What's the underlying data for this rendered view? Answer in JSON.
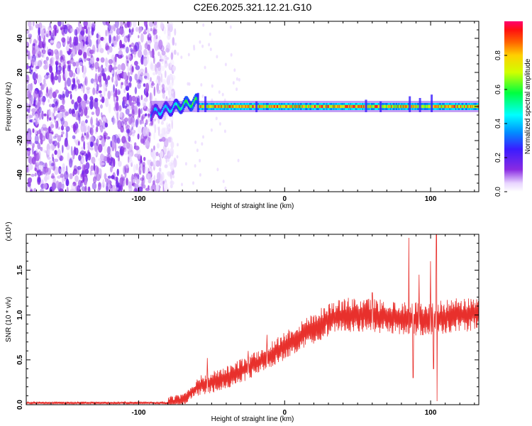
{
  "title": "C2E6.2025.321.12.21.G10",
  "chart_data": [
    {
      "type": "heatmap",
      "name": "spectrogram",
      "xlabel": "Height of straight line (km)",
      "ylabel": "Frequency (Hz)",
      "xlim": [
        -177,
        133
      ],
      "ylim": [
        -50,
        50
      ],
      "xticks": [
        -100,
        0,
        100
      ],
      "yticks": [
        -40,
        -20,
        0,
        20,
        40
      ],
      "colorbar": {
        "label": "Normalized spectral amplitude",
        "range": [
          0.0,
          1.0
        ],
        "ticks": [
          "0.0",
          "0.2",
          "0.4",
          "0.6",
          "0.8"
        ]
      },
      "features": {
        "noise_region_x_max": -80,
        "signal_start_x": -92,
        "signal_frequency_hz": 0,
        "signal_amplitude_plateau": 0.75,
        "wobble_region": [
          -92,
          -60
        ]
      }
    },
    {
      "type": "line",
      "name": "snr",
      "xlabel": "Height of straight line (km)",
      "ylabel": "SNR (10 * v/v)",
      "scale_label": "(x10⁴)",
      "xlim": [
        -177,
        133
      ],
      "ylim": [
        0.0,
        1.9
      ],
      "xticks": [
        -100,
        0,
        100
      ],
      "yticks": [
        "0.0",
        "0.5",
        "1.0",
        "1.5"
      ],
      "color": "#e8302c",
      "envelope": {
        "x": [
          -177,
          -80,
          -70,
          -60,
          -50,
          -40,
          -30,
          -20,
          -10,
          0,
          10,
          20,
          30,
          40,
          50,
          60,
          70,
          80,
          90,
          100,
          110,
          120,
          133
        ],
        "y": [
          0.02,
          0.02,
          0.05,
          0.2,
          0.25,
          0.3,
          0.38,
          0.45,
          0.55,
          0.66,
          0.76,
          0.86,
          0.95,
          1.0,
          1.0,
          1.0,
          0.98,
          0.97,
          0.96,
          0.95,
          0.98,
          1.0,
          1.02
        ]
      },
      "peaks": [
        {
          "x": -53,
          "y": 0.52
        },
        {
          "x": -25,
          "y": 0.6
        },
        {
          "x": -12,
          "y": 0.78
        },
        {
          "x": 60,
          "y": 1.25
        },
        {
          "x": 85,
          "y": 1.86
        },
        {
          "x": 88,
          "y": 1.5
        },
        {
          "x": 92,
          "y": 1.45
        },
        {
          "x": 100,
          "y": 1.6
        },
        {
          "x": 104,
          "y": 1.96
        },
        {
          "x": 104.5,
          "y": 0.04
        },
        {
          "x": 102,
          "y": 0.4
        },
        {
          "x": 88,
          "y": 0.3
        }
      ]
    }
  ]
}
